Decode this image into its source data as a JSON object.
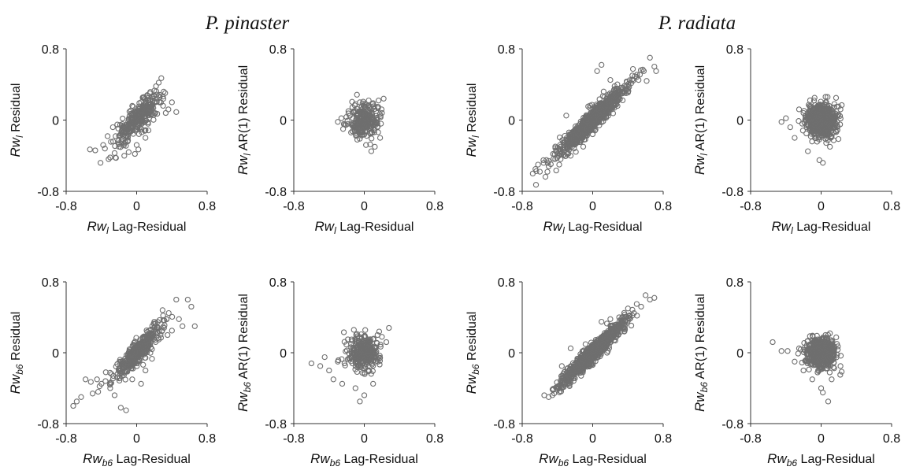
{
  "figure": {
    "species_titles": [
      "P. pinaster",
      "P. radiata"
    ]
  },
  "chart_data": [
    {
      "type": "scatter",
      "species": "P. pinaster",
      "variable": "Rwl",
      "ylabel_var": "Rw",
      "ylabel_sub": "l",
      "ylabel_rest": " Residual",
      "xlabel_var": "Rw",
      "xlabel_sub": "l",
      "xlabel_rest": " Lag-Residual",
      "xlim": [
        -0.8,
        0.8
      ],
      "ylim": [
        -0.8,
        0.8
      ],
      "xticks": [
        "-0.8",
        "0",
        "0.8"
      ],
      "yticks": [
        "0.8",
        "0",
        "-0.8"
      ],
      "grid": false,
      "cloud": {
        "n": 300,
        "slope": 0.9,
        "sx": 0.13,
        "sr": 0.075,
        "mx": 0.02
      },
      "points": [
        [
          -0.53,
          -0.33
        ],
        [
          -0.47,
          -0.34
        ],
        [
          -0.41,
          -0.48
        ],
        [
          -0.38,
          -0.28
        ],
        [
          -0.36,
          -0.32
        ],
        [
          -0.33,
          -0.18
        ],
        [
          -0.3,
          -0.42
        ],
        [
          -0.27,
          -0.08
        ],
        [
          -0.25,
          -0.37
        ],
        [
          -0.22,
          -0.05
        ],
        [
          -0.2,
          -0.3
        ],
        [
          -0.17,
          -0.06
        ],
        [
          -0.14,
          -0.4
        ],
        [
          -0.12,
          -0.1
        ],
        [
          -0.09,
          -0.36
        ],
        [
          -0.06,
          -0.06
        ],
        [
          -0.04,
          0.15
        ],
        [
          -0.02,
          -0.38
        ],
        [
          0.0,
          -0.28
        ],
        [
          0.02,
          -0.33
        ],
        [
          0.05,
          0.2
        ],
        [
          0.08,
          0.25
        ],
        [
          0.1,
          -0.2
        ],
        [
          0.12,
          0.28
        ],
        [
          0.15,
          0.3
        ],
        [
          0.18,
          0.24
        ],
        [
          0.2,
          0.33
        ],
        [
          0.22,
          0.38
        ],
        [
          0.25,
          0.42
        ],
        [
          0.28,
          0.47
        ],
        [
          0.3,
          0.16
        ],
        [
          0.33,
          0.08
        ],
        [
          0.36,
          0.12
        ],
        [
          0.4,
          0.2
        ],
        [
          0.45,
          0.09
        ]
      ]
    },
    {
      "type": "scatter",
      "species": "P. pinaster",
      "variable": "Rwl",
      "ylabel_var": "Rw",
      "ylabel_sub": "l",
      "ylabel_rest": " AR(1) Residual",
      "xlabel_var": "Rw",
      "xlabel_sub": "l",
      "xlabel_rest": " Lag-Residual",
      "xlim": [
        -0.8,
        0.8
      ],
      "ylim": [
        -0.8,
        0.8
      ],
      "xticks": [
        "-0.8",
        "0",
        "0.8"
      ],
      "yticks": [
        "0.8",
        "0",
        "-0.8"
      ],
      "grid": false,
      "cloud": {
        "n": 260,
        "slope": 0.0,
        "sx": 0.08,
        "sr": 0.09,
        "mx": 0.0
      },
      "points": [
        [
          -0.3,
          -0.02
        ],
        [
          -0.26,
          0.02
        ],
        [
          -0.22,
          -0.05
        ],
        [
          -0.24,
          -0.1
        ],
        [
          -0.18,
          0.1
        ],
        [
          -0.15,
          -0.14
        ],
        [
          -0.1,
          0.18
        ],
        [
          -0.08,
          -0.22
        ],
        [
          -0.05,
          0.2
        ],
        [
          0.02,
          -0.28
        ],
        [
          0.05,
          0.22
        ],
        [
          0.08,
          -0.35
        ],
        [
          0.1,
          0.19
        ],
        [
          0.12,
          -0.3
        ],
        [
          0.15,
          0.15
        ],
        [
          0.18,
          -0.2
        ],
        [
          0.2,
          0.08
        ],
        [
          0.22,
          0.24
        ]
      ]
    },
    {
      "type": "scatter",
      "species": "P. radiata",
      "variable": "Rwl",
      "ylabel_var": "Rw",
      "ylabel_sub": "l",
      "ylabel_rest": " Residual",
      "xlabel_var": "Rw",
      "xlabel_sub": "l",
      "xlabel_rest": " Lag-Residual",
      "xlim": [
        -0.8,
        0.8
      ],
      "ylim": [
        -0.8,
        0.8
      ],
      "xticks": [
        "-0.8",
        "0",
        "0.8"
      ],
      "yticks": [
        "0.8",
        "0",
        "-0.8"
      ],
      "grid": false,
      "cloud": {
        "n": 900,
        "slope": 0.95,
        "sx": 0.19,
        "sr": 0.06,
        "mx": 0.0
      },
      "points": [
        [
          -0.68,
          -0.6
        ],
        [
          -0.65,
          -0.55
        ],
        [
          -0.62,
          -0.5
        ],
        [
          -0.6,
          -0.58
        ],
        [
          -0.56,
          -0.45
        ],
        [
          -0.5,
          -0.52
        ],
        [
          -0.45,
          -0.38
        ],
        [
          -0.38,
          -0.5
        ],
        [
          -0.3,
          0.05
        ],
        [
          -0.25,
          -0.4
        ],
        [
          0.05,
          0.55
        ],
        [
          0.1,
          0.62
        ],
        [
          0.2,
          0.45
        ],
        [
          0.28,
          0.4
        ],
        [
          0.4,
          0.35
        ],
        [
          0.45,
          0.5
        ],
        [
          0.52,
          0.45
        ],
        [
          0.58,
          0.55
        ],
        [
          0.65,
          0.7
        ],
        [
          0.7,
          0.6
        ],
        [
          0.72,
          0.55
        ]
      ]
    },
    {
      "type": "scatter",
      "species": "P. radiata",
      "variable": "Rwl",
      "ylabel_var": "Rw",
      "ylabel_sub": "l",
      "ylabel_rest": " AR(1) Residual",
      "xlabel_var": "Rw",
      "xlabel_sub": "l",
      "xlabel_rest": " Lag-Residual",
      "xlim": [
        -0.8,
        0.8
      ],
      "ylim": [
        -0.8,
        0.8
      ],
      "xticks": [
        "-0.8",
        "0",
        "0.8"
      ],
      "yticks": [
        "0.8",
        "0",
        "-0.8"
      ],
      "grid": false,
      "cloud": {
        "n": 700,
        "slope": 0.0,
        "sx": 0.08,
        "sr": 0.09,
        "mx": 0.0
      },
      "points": [
        [
          -0.45,
          -0.02
        ],
        [
          -0.4,
          0.02
        ],
        [
          -0.35,
          -0.08
        ],
        [
          -0.3,
          -0.2
        ],
        [
          -0.25,
          0.12
        ],
        [
          -0.2,
          0.08
        ],
        [
          -0.15,
          -0.35
        ],
        [
          -0.08,
          0.22
        ],
        [
          -0.02,
          -0.45
        ],
        [
          0.02,
          -0.48
        ],
        [
          0.05,
          0.2
        ],
        [
          0.1,
          -0.3
        ],
        [
          0.15,
          0.18
        ],
        [
          0.18,
          0.15
        ],
        [
          0.22,
          0.12
        ]
      ]
    },
    {
      "type": "scatter",
      "species": "P. pinaster",
      "variable": "Rwb6",
      "ylabel_var": "Rw",
      "ylabel_sub": "b6",
      "ylabel_rest": " Residual",
      "xlabel_var": "Rw",
      "xlabel_sub": "b6",
      "xlabel_rest": " Lag-Residual",
      "xlim": [
        -0.8,
        0.8
      ],
      "ylim": [
        -0.8,
        0.8
      ],
      "xticks": [
        "-0.8",
        "0",
        "0.8"
      ],
      "yticks": [
        "0.8",
        "0",
        "-0.8"
      ],
      "grid": false,
      "cloud": {
        "n": 380,
        "slope": 0.95,
        "sx": 0.13,
        "sr": 0.07,
        "mx": 0.02
      },
      "points": [
        [
          -0.72,
          -0.6
        ],
        [
          -0.68,
          -0.55
        ],
        [
          -0.63,
          -0.5
        ],
        [
          -0.58,
          -0.3
        ],
        [
          -0.52,
          -0.33
        ],
        [
          -0.5,
          -0.46
        ],
        [
          -0.45,
          -0.3
        ],
        [
          -0.4,
          -0.35
        ],
        [
          -0.35,
          -0.22
        ],
        [
          -0.3,
          -0.4
        ],
        [
          -0.25,
          -0.48
        ],
        [
          -0.18,
          -0.62
        ],
        [
          -0.12,
          -0.65
        ],
        [
          -0.05,
          -0.3
        ],
        [
          0.05,
          -0.35
        ],
        [
          0.1,
          -0.2
        ],
        [
          0.2,
          0.35
        ],
        [
          0.3,
          0.42
        ],
        [
          0.35,
          0.2
        ],
        [
          0.4,
          0.25
        ],
        [
          0.45,
          0.6
        ],
        [
          0.48,
          0.38
        ],
        [
          0.52,
          0.3
        ],
        [
          0.58,
          0.6
        ],
        [
          0.62,
          0.52
        ],
        [
          0.66,
          0.3
        ]
      ]
    },
    {
      "type": "scatter",
      "species": "P. pinaster",
      "variable": "Rwb6",
      "ylabel_var": "Rw",
      "ylabel_sub": "b6",
      "ylabel_rest": " AR(1) Residual",
      "xlabel_var": "Rw",
      "xlabel_sub": "b6",
      "xlabel_rest": " Lag-Residual",
      "xlim": [
        -0.8,
        0.8
      ],
      "ylim": [
        -0.8,
        0.8
      ],
      "xticks": [
        "-0.8",
        "0",
        "0.8"
      ],
      "yticks": [
        "0.8",
        "0",
        "-0.8"
      ],
      "grid": false,
      "cloud": {
        "n": 320,
        "slope": 0.0,
        "sx": 0.09,
        "sr": 0.09,
        "mx": 0.0
      },
      "points": [
        [
          -0.6,
          -0.12
        ],
        [
          -0.5,
          -0.15
        ],
        [
          -0.45,
          -0.05
        ],
        [
          -0.4,
          -0.2
        ],
        [
          -0.35,
          -0.3
        ],
        [
          -0.3,
          -0.1
        ],
        [
          -0.25,
          -0.35
        ],
        [
          -0.15,
          0.1
        ],
        [
          -0.1,
          -0.4
        ],
        [
          -0.05,
          -0.55
        ],
        [
          0.0,
          -0.48
        ],
        [
          0.05,
          0.15
        ],
        [
          0.1,
          -0.35
        ],
        [
          0.15,
          0.2
        ],
        [
          0.2,
          0.18
        ],
        [
          0.25,
          0.12
        ],
        [
          0.28,
          0.28
        ]
      ]
    },
    {
      "type": "scatter",
      "species": "P. radiata",
      "variable": "Rwb6",
      "ylabel_var": "Rw",
      "ylabel_sub": "b6",
      "ylabel_rest": " Residual",
      "xlabel_var": "Rw",
      "xlabel_sub": "b6",
      "xlabel_rest": " Lag-Residual",
      "xlim": [
        -0.8,
        0.8
      ],
      "ylim": [
        -0.8,
        0.8
      ],
      "xticks": [
        "-0.8",
        "0",
        "0.8"
      ],
      "yticks": [
        "0.8",
        "0",
        "-0.8"
      ],
      "grid": false,
      "cloud": {
        "n": 900,
        "slope": 0.95,
        "sx": 0.18,
        "sr": 0.05,
        "mx": 0.0
      },
      "points": [
        [
          -0.55,
          -0.48
        ],
        [
          -0.5,
          -0.5
        ],
        [
          -0.45,
          -0.42
        ],
        [
          -0.4,
          -0.38
        ],
        [
          -0.35,
          -0.15
        ],
        [
          -0.3,
          -0.3
        ],
        [
          -0.25,
          0.05
        ],
        [
          -0.2,
          -0.2
        ],
        [
          0.1,
          0.35
        ],
        [
          0.2,
          0.38
        ],
        [
          0.3,
          0.4
        ],
        [
          0.4,
          0.5
        ],
        [
          0.45,
          0.42
        ],
        [
          0.5,
          0.55
        ],
        [
          0.55,
          0.52
        ],
        [
          0.6,
          0.65
        ],
        [
          0.65,
          0.6
        ],
        [
          0.7,
          0.62
        ]
      ]
    },
    {
      "type": "scatter",
      "species": "P. radiata",
      "variable": "Rwb6",
      "ylabel_var": "Rw",
      "ylabel_sub": "b6",
      "ylabel_rest": " AR(1) Residual",
      "xlabel_var": "Rw",
      "xlabel_sub": "b6",
      "xlabel_rest": " Lag-Residual",
      "xlim": [
        -0.8,
        0.8
      ],
      "ylim": [
        -0.8,
        0.8
      ],
      "xticks": [
        "-0.8",
        "0",
        "0.8"
      ],
      "yticks": [
        "0.8",
        "0",
        "-0.8"
      ],
      "grid": false,
      "cloud": {
        "n": 650,
        "slope": 0.0,
        "sx": 0.08,
        "sr": 0.08,
        "mx": 0.0
      },
      "points": [
        [
          -0.55,
          0.12
        ],
        [
          -0.45,
          0.02
        ],
        [
          -0.38,
          0.02
        ],
        [
          -0.3,
          -0.1
        ],
        [
          -0.25,
          0.05
        ],
        [
          -0.2,
          -0.2
        ],
        [
          -0.1,
          -0.3
        ],
        [
          0.0,
          -0.4
        ],
        [
          0.02,
          -0.45
        ],
        [
          0.05,
          0.2
        ],
        [
          0.08,
          -0.55
        ],
        [
          0.1,
          0.22
        ],
        [
          0.12,
          -0.3
        ],
        [
          0.18,
          0.1
        ],
        [
          0.22,
          -0.15
        ]
      ]
    }
  ]
}
